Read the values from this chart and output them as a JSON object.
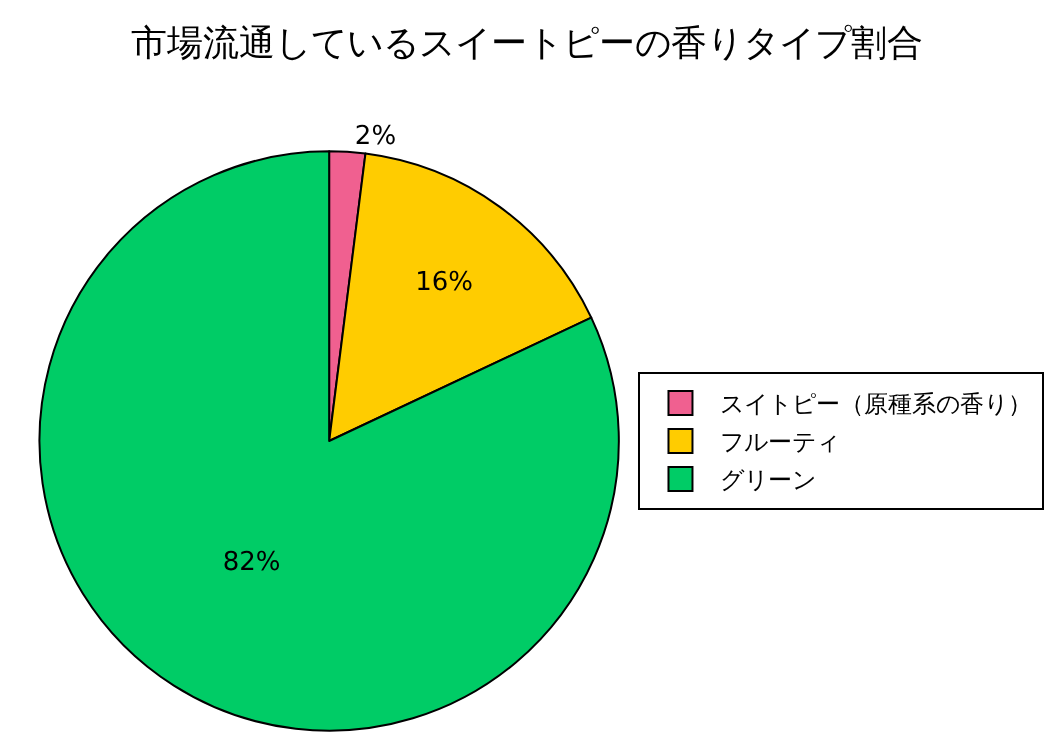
{
  "chart_data": {
    "type": "pie",
    "title": "市場流通しているスイートピーの香りタイプ割合",
    "categories": [
      "スイトピー（原種系の香り）",
      "フルーティ",
      "グリーン"
    ],
    "values": [
      2,
      16,
      82
    ],
    "value_labels": [
      "2%",
      "16%",
      "82%"
    ],
    "colors": [
      "#f06090",
      "#ffcc00",
      "#00cc66"
    ],
    "legend": "right"
  }
}
